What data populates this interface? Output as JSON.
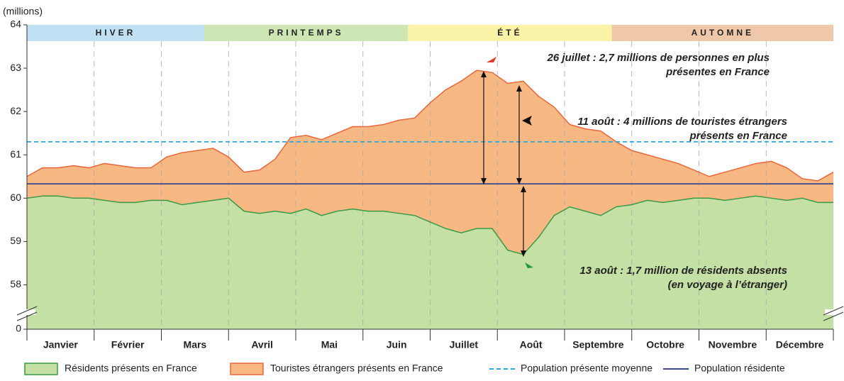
{
  "chart_data": {
    "type": "stacked_area",
    "y_unit_label": "(millions)",
    "xlim": [
      1,
      365
    ],
    "ylim": [
      0,
      64
    ],
    "axis_break": [
      0,
      57.5
    ],
    "yticks": [
      0,
      58,
      59,
      60,
      61,
      62,
      63,
      64
    ],
    "categories": [
      "Janvier",
      "Février",
      "Mars",
      "Avril",
      "Mai",
      "Juin",
      "Juillet",
      "Août",
      "Septembre",
      "Octobre",
      "Novembre",
      "Décembre"
    ],
    "x": [
      1,
      8,
      15,
      22,
      29,
      36,
      43,
      50,
      57,
      64,
      71,
      78,
      85,
      92,
      99,
      106,
      113,
      120,
      127,
      134,
      141,
      148,
      155,
      162,
      169,
      176,
      183,
      190,
      197,
      204,
      211,
      218,
      225,
      232,
      239,
      246,
      253,
      260,
      267,
      274,
      281,
      288,
      295,
      302,
      309,
      316,
      323,
      330,
      337,
      344,
      351,
      358,
      365
    ],
    "series": [
      {
        "name": "Résidents présents en France",
        "color": "#c4e0a4",
        "line_color": "#3a9a45",
        "values": [
          60.0,
          60.05,
          60.05,
          60.0,
          60.0,
          59.95,
          59.9,
          59.9,
          59.95,
          59.95,
          59.85,
          59.9,
          59.95,
          60.0,
          59.7,
          59.65,
          59.7,
          59.65,
          59.75,
          59.6,
          59.7,
          59.75,
          59.7,
          59.7,
          59.65,
          59.6,
          59.45,
          59.3,
          59.2,
          59.3,
          59.3,
          58.8,
          58.7,
          59.1,
          59.6,
          59.8,
          59.7,
          59.6,
          59.8,
          59.85,
          59.95,
          59.9,
          59.95,
          60.0,
          60.0,
          59.95,
          60.0,
          60.05,
          60.0,
          59.95,
          60.0,
          59.9,
          59.9
        ]
      },
      {
        "name": "Touristes étrangers présents en France",
        "color": "#f7b883",
        "line_color": "#e8663a",
        "values": [
          0.5,
          0.65,
          0.65,
          0.75,
          0.7,
          0.85,
          0.85,
          0.8,
          0.75,
          1.0,
          1.2,
          1.2,
          1.2,
          0.95,
          0.9,
          1.0,
          1.2,
          1.75,
          1.7,
          1.75,
          1.8,
          1.9,
          1.95,
          2.0,
          2.15,
          2.25,
          2.75,
          3.2,
          3.5,
          3.65,
          3.6,
          3.85,
          4.0,
          3.25,
          2.5,
          1.9,
          1.9,
          1.95,
          1.5,
          1.25,
          1.05,
          1.0,
          0.85,
          0.65,
          0.5,
          0.65,
          0.7,
          0.75,
          0.85,
          0.75,
          0.45,
          0.5,
          0.7
        ]
      }
    ],
    "reference_lines": [
      {
        "name": "Population présente moyenne",
        "value": 61.3,
        "color": "#29a9e0",
        "dashed": true
      },
      {
        "name": "Population résidente",
        "value": 60.33,
        "color": "#3a4a8c",
        "dashed": false
      }
    ],
    "seasons": [
      {
        "label": "HIVER",
        "start": 1,
        "end": 81,
        "color": "#bfe1f3",
        "text_color": "#2a8fc9"
      },
      {
        "label": "PRINTEMPS",
        "start": 81,
        "end": 173,
        "color": "#cde6b4",
        "text_color": "#5a9e3a"
      },
      {
        "label": "ÉTÉ",
        "start": 173,
        "end": 265,
        "color": "#fbf3a8",
        "text_color": "#e08a1e"
      },
      {
        "label": "AUTOMNE",
        "start": 265,
        "end": 365,
        "color": "#eec8a8",
        "text_color": "#b0652a"
      }
    ],
    "annotations": [
      {
        "lines": [
          "26 juillet : 2,7 millions de personnes en plus",
          "présentes en France"
        ],
        "color": "#e03a2a"
      },
      {
        "lines": [
          "11 août : 4 millions de touristes étrangers",
          "présents en France"
        ],
        "color": "#222222"
      },
      {
        "lines": [
          "13 août : 1,7 million de résidents absents",
          "(en voyage à l’étranger)"
        ],
        "color": "#1a9a3a"
      }
    ]
  }
}
